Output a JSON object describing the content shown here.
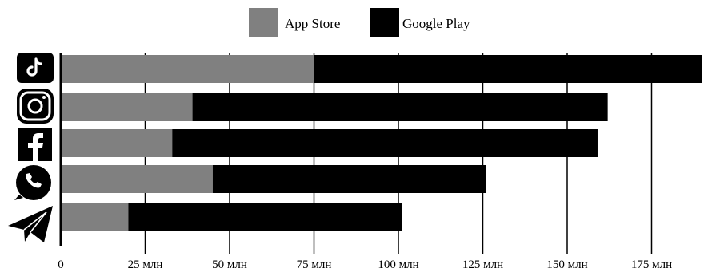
{
  "chart_data": {
    "type": "bar",
    "orientation": "horizontal",
    "stacked": true,
    "categories": [
      "TikTok",
      "Instagram",
      "Facebook",
      "WhatsApp",
      "Telegram"
    ],
    "category_icons": [
      "tiktok-icon",
      "instagram-icon",
      "facebook-icon",
      "whatsapp-icon",
      "telegram-icon"
    ],
    "series": [
      {
        "name": "App Store",
        "color": "#808080",
        "values": [
          75,
          39,
          33,
          45,
          20
        ]
      },
      {
        "name": "Google Play",
        "color": "#000000",
        "values": [
          115,
          123,
          126,
          81,
          81
        ]
      }
    ],
    "xlim": [
      0,
      190
    ],
    "xticks": [
      0,
      25,
      50,
      75,
      100,
      125,
      150,
      175
    ],
    "xtick_labels": [
      "0",
      "25 млн",
      "50 млн",
      "75 млн",
      "100 млн",
      "125 млн",
      "150 млн",
      "175 млн"
    ],
    "grid": true,
    "legend_position": "top-center"
  }
}
